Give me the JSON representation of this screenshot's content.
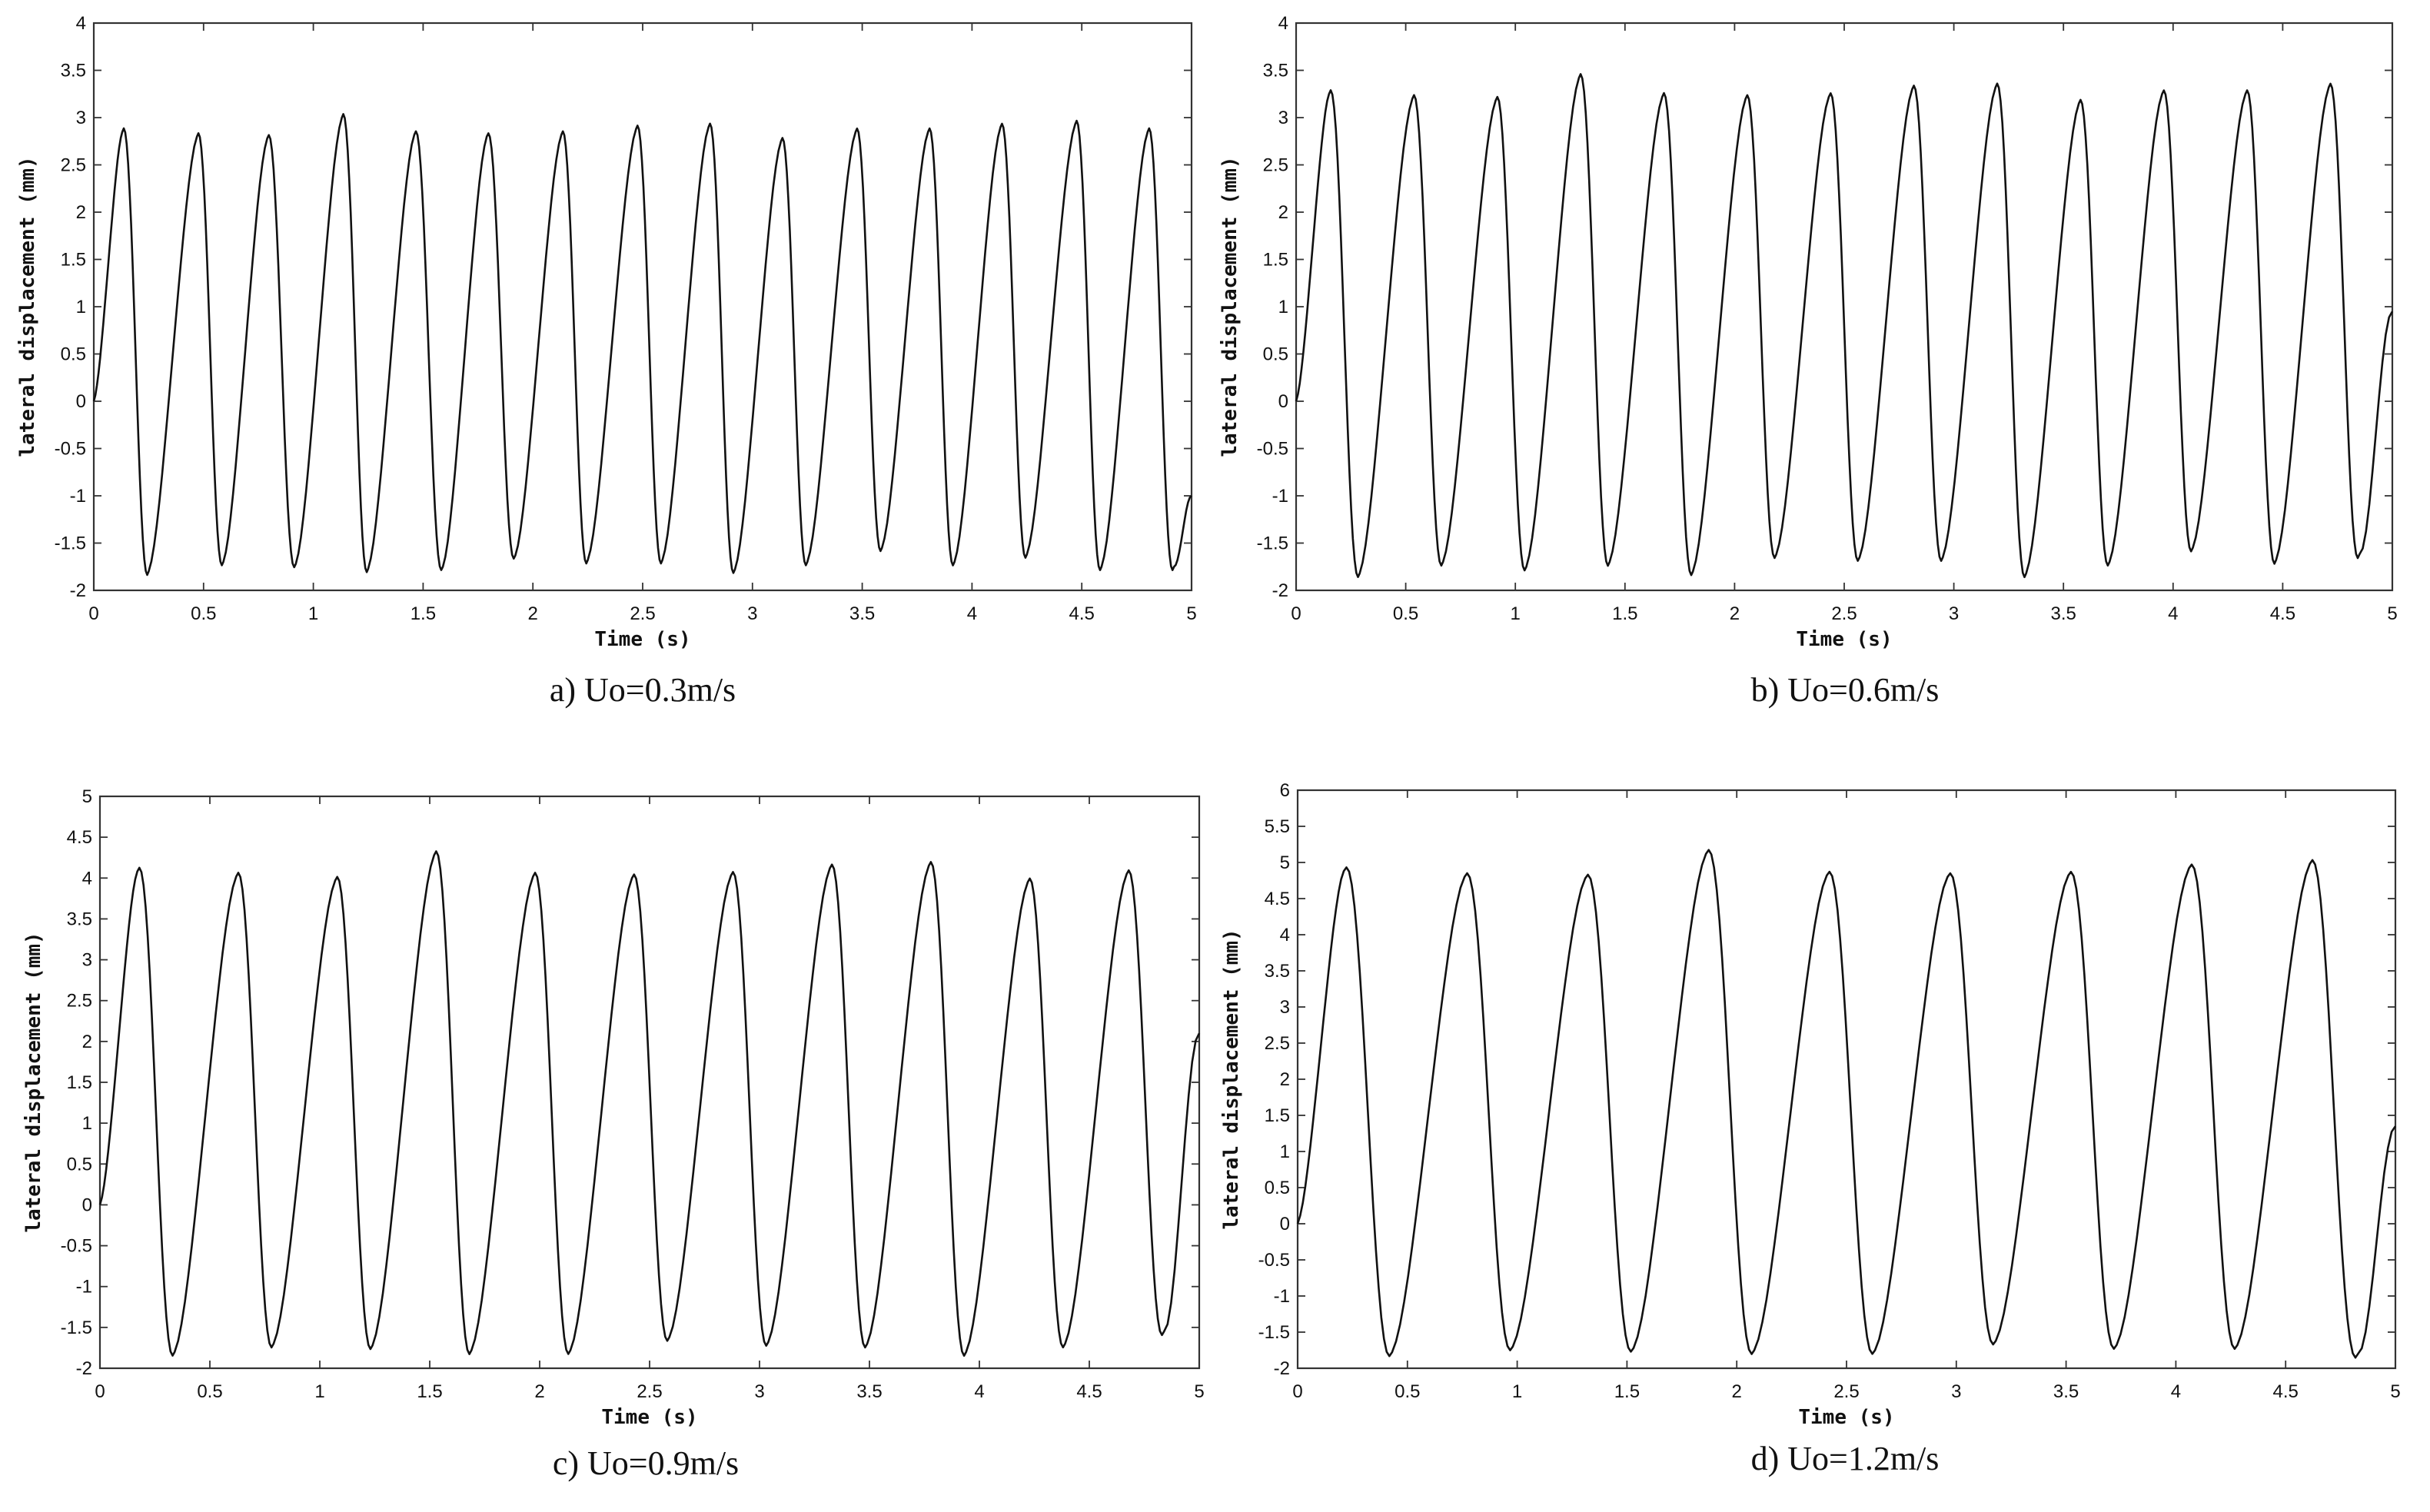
{
  "chart_data": [
    {
      "type": "line",
      "caption": "a) Uo=0.3m/s",
      "xlabel": "Time (s)",
      "ylabel": "lateral displacement (mm)",
      "xlim": [
        0,
        5
      ],
      "ylim": [
        -2,
        4
      ],
      "xticks": [
        "0",
        "0.5",
        "1",
        "1.5",
        "2",
        "2.5",
        "3",
        "3.5",
        "4",
        "4.5",
        "5"
      ],
      "yticks": [
        "-2",
        "-1.5",
        "-1",
        "-0.5",
        "0",
        "0.5",
        "1",
        "1.5",
        "2",
        "2.5",
        "3",
        "3.5",
        "4"
      ],
      "grid": false,
      "series": [
        {
          "peaks": [
            [
              0.13,
              2.85
            ],
            [
              0.47,
              2.8
            ],
            [
              0.79,
              2.78
            ],
            [
              1.13,
              3.0
            ],
            [
              1.46,
              2.82
            ],
            [
              1.79,
              2.8
            ],
            [
              2.13,
              2.82
            ],
            [
              2.47,
              2.88
            ],
            [
              2.8,
              2.9
            ],
            [
              3.13,
              2.75
            ],
            [
              3.47,
              2.85
            ],
            [
              3.8,
              2.85
            ],
            [
              4.13,
              2.9
            ],
            [
              4.47,
              2.93
            ],
            [
              4.8,
              2.85
            ]
          ],
          "troughs": [
            [
              0.25,
              -1.8
            ],
            [
              0.59,
              -1.7
            ],
            [
              0.92,
              -1.72
            ],
            [
              1.25,
              -1.77
            ],
            [
              1.59,
              -1.75
            ],
            [
              1.92,
              -1.63
            ],
            [
              2.25,
              -1.68
            ],
            [
              2.59,
              -1.68
            ],
            [
              2.92,
              -1.78
            ],
            [
              3.25,
              -1.7
            ],
            [
              3.59,
              -1.55
            ],
            [
              3.92,
              -1.7
            ],
            [
              4.25,
              -1.62
            ],
            [
              4.59,
              -1.75
            ],
            [
              4.92,
              -1.75
            ]
          ],
          "start": 0.0,
          "end": -1.0
        }
      ]
    },
    {
      "type": "line",
      "caption": "b) Uo=0.6m/s",
      "xlabel": "Time (s)",
      "ylabel": "lateral displacement (mm)",
      "xlim": [
        0,
        5
      ],
      "ylim": [
        -2,
        4
      ],
      "xticks": [
        "0",
        "0.5",
        "1",
        "1.5",
        "2",
        "2.5",
        "3",
        "3.5",
        "4",
        "4.5",
        "5"
      ],
      "yticks": [
        "-2",
        "-1.5",
        "-1",
        "-0.5",
        "0",
        "0.5",
        "1",
        "1.5",
        "2",
        "2.5",
        "3",
        "3.5",
        "4"
      ],
      "grid": false,
      "series": [
        {
          "peaks": [
            [
              0.15,
              3.25
            ],
            [
              0.53,
              3.2
            ],
            [
              0.91,
              3.18
            ],
            [
              1.29,
              3.42
            ],
            [
              1.67,
              3.22
            ],
            [
              2.05,
              3.2
            ],
            [
              2.43,
              3.22
            ],
            [
              2.81,
              3.3
            ],
            [
              3.19,
              3.32
            ],
            [
              3.57,
              3.15
            ],
            [
              3.95,
              3.25
            ],
            [
              4.33,
              3.25
            ],
            [
              4.71,
              3.32
            ]
          ],
          "troughs": [
            [
              0.29,
              -1.82
            ],
            [
              0.67,
              -1.7
            ],
            [
              1.05,
              -1.75
            ],
            [
              1.43,
              -1.7
            ],
            [
              1.81,
              -1.8
            ],
            [
              2.19,
              -1.62
            ],
            [
              2.57,
              -1.65
            ],
            [
              2.95,
              -1.65
            ],
            [
              3.33,
              -1.82
            ],
            [
              3.71,
              -1.7
            ],
            [
              4.09,
              -1.55
            ],
            [
              4.47,
              -1.68
            ],
            [
              4.85,
              -1.62
            ]
          ],
          "start": 0.0,
          "end": 0.95
        }
      ]
    },
    {
      "type": "line",
      "caption": "c) Uo=0.9m/s",
      "xlabel": "Time (s)",
      "ylabel": "lateral displacement (mm)",
      "xlim": [
        0,
        5
      ],
      "ylim": [
        -2,
        5
      ],
      "xticks": [
        "0",
        "0.5",
        "1",
        "1.5",
        "2",
        "2.5",
        "3",
        "3.5",
        "4",
        "4.5",
        "5"
      ],
      "yticks": [
        "-2",
        "-1.5",
        "-1",
        "-0.5",
        "0",
        "0.5",
        "1",
        "1.5",
        "2",
        "2.5",
        "3",
        "3.5",
        "4",
        "4.5",
        "5"
      ],
      "grid": false,
      "series": [
        {
          "peaks": [
            [
              0.17,
              4.08
            ],
            [
              0.62,
              4.02
            ],
            [
              1.07,
              3.97
            ],
            [
              1.52,
              4.28
            ],
            [
              1.97,
              4.02
            ],
            [
              2.42,
              4.0
            ],
            [
              2.87,
              4.03
            ],
            [
              3.32,
              4.12
            ],
            [
              3.77,
              4.15
            ],
            [
              4.22,
              3.95
            ],
            [
              4.67,
              4.05
            ]
          ],
          "troughs": [
            [
              0.34,
              -1.8
            ],
            [
              0.79,
              -1.7
            ],
            [
              1.24,
              -1.72
            ],
            [
              1.69,
              -1.78
            ],
            [
              2.14,
              -1.78
            ],
            [
              2.59,
              -1.62
            ],
            [
              3.04,
              -1.68
            ],
            [
              3.49,
              -1.7
            ],
            [
              3.94,
              -1.8
            ],
            [
              4.39,
              -1.7
            ],
            [
              4.84,
              -1.55
            ]
          ],
          "start": 0.0,
          "end": 2.1
        }
      ]
    },
    {
      "type": "line",
      "caption": "d) Uo=1.2m/s",
      "xlabel": "Time (s)",
      "ylabel": "lateral displacement (mm)",
      "xlim": [
        0,
        5
      ],
      "ylim": [
        -2,
        6
      ],
      "xticks": [
        "0",
        "0.5",
        "1",
        "1.5",
        "2",
        "2.5",
        "3",
        "3.5",
        "4",
        "4.5",
        "5"
      ],
      "yticks": [
        "-2",
        "-1.5",
        "-1",
        "-0.5",
        "0",
        "0.5",
        "1",
        "1.5",
        "2",
        "2.5",
        "3",
        "3.5",
        "4",
        "4.5",
        "5",
        "5.5",
        "6"
      ],
      "grid": false,
      "series": [
        {
          "peaks": [
            [
              0.21,
              4.88
            ],
            [
              0.76,
              4.8
            ],
            [
              1.31,
              4.78
            ],
            [
              1.86,
              5.12
            ],
            [
              2.41,
              4.82
            ],
            [
              2.96,
              4.8
            ],
            [
              3.51,
              4.82
            ],
            [
              4.06,
              4.92
            ],
            [
              4.61,
              4.98
            ]
          ],
          "troughs": [
            [
              0.43,
              -1.78
            ],
            [
              0.98,
              -1.7
            ],
            [
              1.53,
              -1.72
            ],
            [
              2.08,
              -1.75
            ],
            [
              2.63,
              -1.75
            ],
            [
              3.18,
              -1.62
            ],
            [
              3.73,
              -1.68
            ],
            [
              4.28,
              -1.68
            ],
            [
              4.83,
              -1.8
            ]
          ],
          "start": 0.0,
          "end": 1.35
        }
      ]
    }
  ]
}
